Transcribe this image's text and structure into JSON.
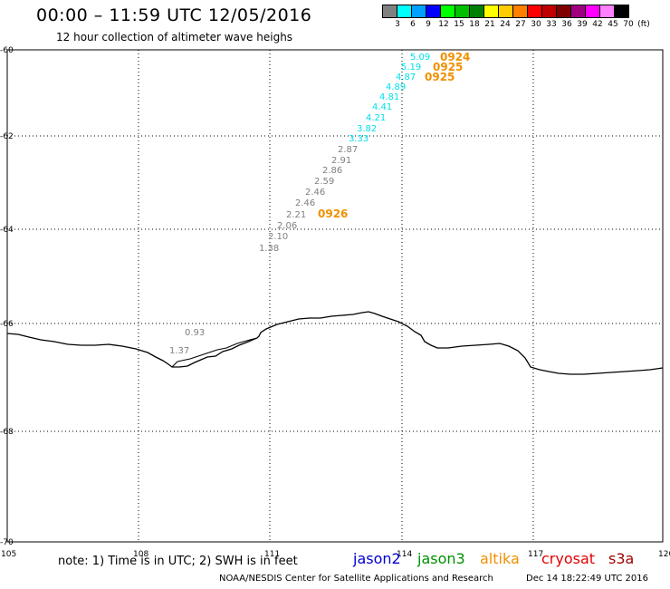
{
  "header": {
    "title": "00:00 – 11:59 UTC 12/05/2016",
    "subtitle": "12 hour collection of altimeter wave heighs"
  },
  "legend": {
    "colors": [
      "#808080",
      "#00ffff",
      "#00a0ff",
      "#0000ff",
      "#00ff00",
      "#00c000",
      "#008000",
      "#ffff00",
      "#ffcc00",
      "#ff8000",
      "#ff0000",
      "#c00000",
      "#800000",
      "#a00080",
      "#ff00ff",
      "#ff80ff",
      "#000000"
    ],
    "labels": [
      "3",
      "6",
      "9",
      "12",
      "15",
      "18",
      "21",
      "24",
      "27",
      "30",
      "33",
      "36",
      "39",
      "42",
      "45",
      "70",
      "(ft)"
    ]
  },
  "axes": {
    "x_ticks": [
      "105",
      "108",
      "111",
      "114",
      "117",
      "120"
    ],
    "y_ticks": [
      "-60",
      "-62",
      "-64",
      "-66",
      "-68",
      "-70"
    ],
    "lon_range": [
      105,
      120
    ],
    "lat_range": [
      -60,
      -70
    ]
  },
  "track": {
    "cyan_color": "#00e0e8",
    "gray_color": "#808080",
    "time_color": "#f09000",
    "cyan_values": [
      "5.09",
      "5.19",
      "4.87",
      "4.89",
      "4.81",
      "4.41",
      "4.21",
      "3.82",
      "3.33"
    ],
    "gray_values": [
      "2.87",
      "2.91",
      "2.86",
      "2.59",
      "2.46",
      "2.46",
      "2.21",
      "2.06",
      "2.10",
      "1.38"
    ],
    "coast_values": [
      "0.93",
      "1.37"
    ],
    "times": [
      "0924",
      "0925",
      "0925",
      "0926"
    ]
  },
  "footer": {
    "note": "note:  1) Time is in UTC;  2) SWH is in feet",
    "satellites": [
      {
        "name": "jason2",
        "color": "#0000d0"
      },
      {
        "name": "jason3",
        "color": "#009000"
      },
      {
        "name": "altika",
        "color": "#f09000"
      },
      {
        "name": "cryosat",
        "color": "#e00000"
      },
      {
        "name": "s3a",
        "color": "#a00000"
      }
    ],
    "credit": "NOAA/NESDIS Center for Satellite Applications and Research",
    "timestamp": "Dec 14 18:22:49 UTC 2016"
  }
}
